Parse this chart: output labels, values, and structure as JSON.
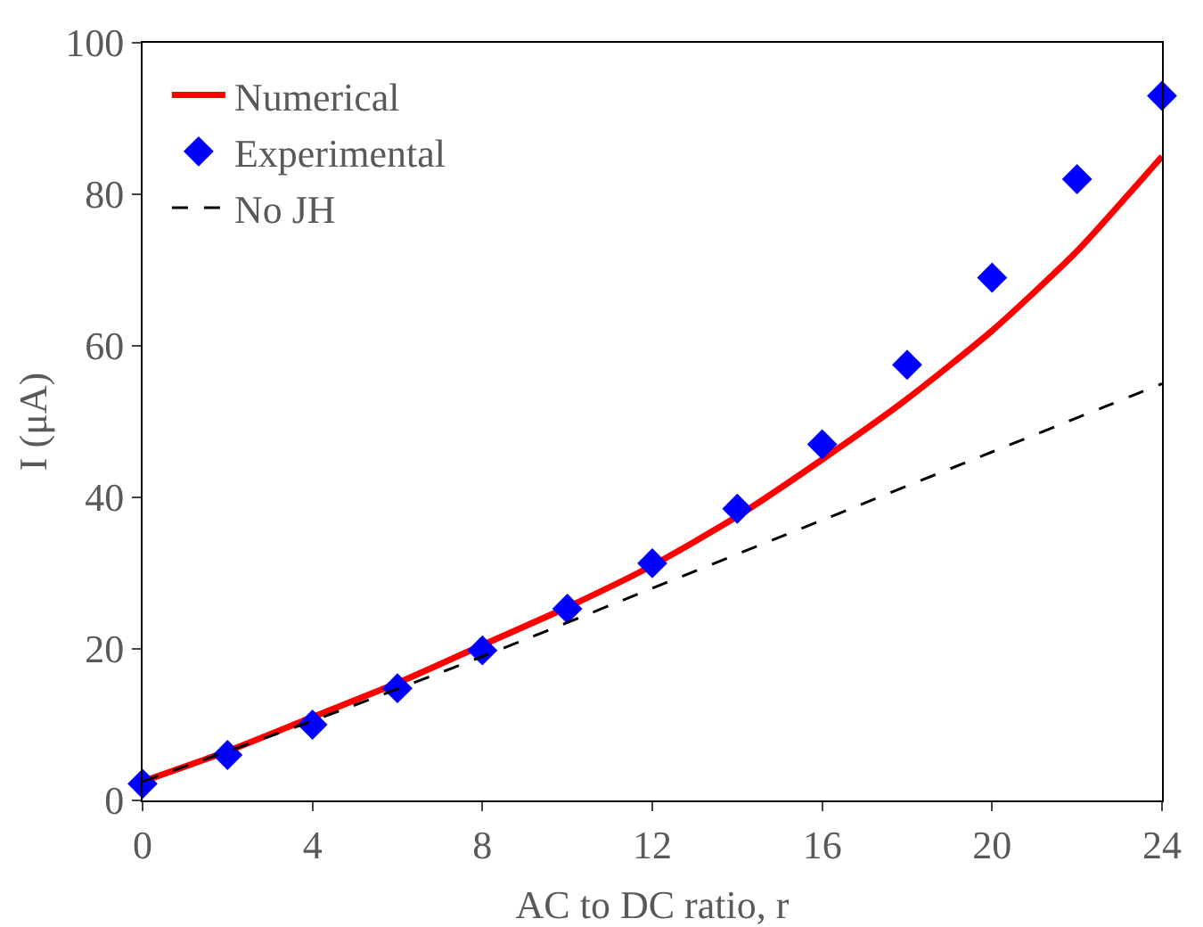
{
  "chart_data": {
    "type": "line",
    "xlabel": "AC to DC ratio, r",
    "ylabel": "I (μA)",
    "xlim": [
      0,
      24
    ],
    "xticks": [
      0,
      4,
      8,
      12,
      16,
      20,
      24
    ],
    "ylim": [
      0,
      100
    ],
    "yticks": [
      0,
      20,
      40,
      60,
      80,
      100
    ],
    "grid": false,
    "legend": "top left",
    "series": [
      {
        "name": "Numerical",
        "color": "#ff0000",
        "line_style": "solid",
        "marker": "none",
        "x": [
          0,
          2,
          4,
          6,
          8,
          10,
          12,
          14,
          16,
          18,
          20,
          22,
          24
        ],
        "values": [
          2.5,
          6.5,
          11,
          15.5,
          20.5,
          25.5,
          31,
          37.5,
          45,
          53,
          62,
          72.5,
          85
        ]
      },
      {
        "name": "Experimental",
        "type": "scatter",
        "color": "#0000ff",
        "marker": "diamond",
        "x": [
          0,
          2,
          4,
          6,
          8,
          10,
          12,
          14,
          16,
          18,
          20,
          22,
          24
        ],
        "values": [
          2.2,
          6,
          10,
          14.8,
          19.8,
          25.3,
          31.3,
          38.5,
          47,
          57.5,
          69,
          82,
          93
        ]
      },
      {
        "name": "No JH",
        "color": "#000000",
        "line_style": "dashed",
        "marker": "none",
        "x": [
          0,
          4,
          8,
          12,
          16,
          20,
          24
        ],
        "values": [
          2.5,
          10.5,
          19,
          28,
          37,
          46,
          55
        ]
      }
    ]
  }
}
